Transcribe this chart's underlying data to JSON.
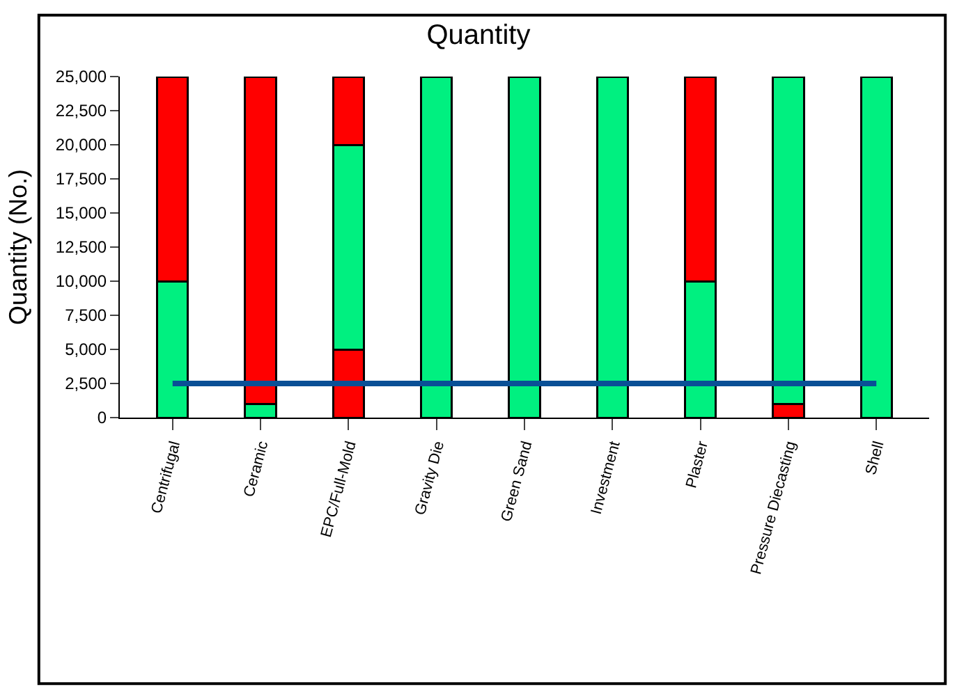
{
  "chart_data": {
    "type": "bar",
    "title": "Quantity",
    "ylabel": "Quantity (No.)",
    "categories": [
      "Centrifugal",
      "Ceramic",
      "EPC/Full-Mold",
      "Gravity Die",
      "Green Sand",
      "Investment",
      "Plaster",
      "Pressure Diecasting",
      "Shell"
    ],
    "stacked": true,
    "series": [
      {
        "color": "#ff0000",
        "values": [
          null,
          null,
          5000,
          null,
          null,
          null,
          null,
          1000,
          null
        ]
      },
      {
        "color": "#00f080",
        "values": [
          10000,
          1000,
          15000,
          25000,
          25000,
          25000,
          10000,
          24000,
          25000
        ]
      },
      {
        "color": "#ff0000",
        "values": [
          15000,
          24000,
          5000,
          null,
          null,
          null,
          15000,
          null,
          null
        ]
      }
    ],
    "ylim": [
      0,
      25000
    ],
    "yticks": [
      {
        "value": 0,
        "label": "0"
      },
      {
        "value": 2500,
        "label": "2,500"
      },
      {
        "value": 5000,
        "label": "5,000"
      },
      {
        "value": 7500,
        "label": "7,500"
      },
      {
        "value": 10000,
        "label": "10,000"
      },
      {
        "value": 12500,
        "label": "12,500"
      },
      {
        "value": 15000,
        "label": "15,000"
      },
      {
        "value": 17500,
        "label": "17,500"
      },
      {
        "value": 20000,
        "label": "20,000"
      },
      {
        "value": 22500,
        "label": "22,500"
      },
      {
        "value": 25000,
        "label": "25,000"
      }
    ],
    "ref_lines": [
      {
        "axis": "y",
        "value": 2500,
        "color": "#0a5096"
      }
    ],
    "grid": false,
    "legend": false
  }
}
